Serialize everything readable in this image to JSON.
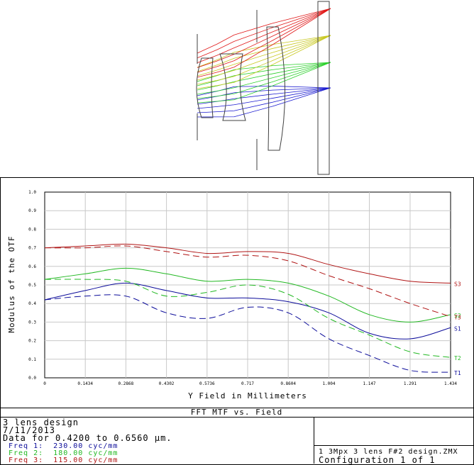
{
  "layout_colors": {
    "blue": "#1a1ad0",
    "green": "#2bd02b",
    "yellow": "#c8c820",
    "red": "#e01818",
    "element": "#404040"
  },
  "chart_data": {
    "type": "line",
    "title": "FFT MTF vs. Field",
    "xlabel": "Y Field in Millimeters",
    "ylabel": "Modulus of the OTF",
    "xlim": [
      0,
      1.434
    ],
    "ylim": [
      0,
      1.0
    ],
    "x_ticks": [
      "0",
      "0.1434",
      "0.2868",
      "0.4302",
      "0.5736",
      "0.717",
      "0.8604",
      "1.004",
      "1.147",
      "1.291",
      "1.434"
    ],
    "y_ticks": [
      "0.0",
      "0.1",
      "0.2",
      "0.3",
      "0.4",
      "0.5",
      "0.6",
      "0.7",
      "0.8",
      "0.9",
      "1.0"
    ],
    "grid": true,
    "x": [
      0,
      0.1434,
      0.2868,
      0.4302,
      0.5736,
      0.717,
      0.8604,
      1.004,
      1.147,
      1.291,
      1.434
    ],
    "series": [
      {
        "name": "Freq 1: 230.00 cyc/mm",
        "label": "S1",
        "line": "solid",
        "color": "#0c0c9a",
        "values": [
          0.42,
          0.47,
          0.51,
          0.47,
          0.43,
          0.43,
          0.41,
          0.35,
          0.24,
          0.21,
          0.27
        ]
      },
      {
        "name": "Freq 1: 230.00 cyc/mm",
        "label": "T1",
        "line": "dashed",
        "color": "#0c0c9a",
        "values": [
          0.42,
          0.44,
          0.44,
          0.35,
          0.32,
          0.38,
          0.35,
          0.21,
          0.12,
          0.04,
          0.03
        ]
      },
      {
        "name": "Freq 2: 180.00 cyc/mm",
        "label": "S2",
        "line": "solid",
        "color": "#22b822",
        "values": [
          0.53,
          0.56,
          0.59,
          0.56,
          0.52,
          0.53,
          0.51,
          0.44,
          0.34,
          0.3,
          0.34
        ]
      },
      {
        "name": "Freq 2: 180.00 cyc/mm",
        "label": "T2",
        "line": "dashed",
        "color": "#22b822",
        "values": [
          0.53,
          0.53,
          0.52,
          0.44,
          0.46,
          0.5,
          0.45,
          0.32,
          0.23,
          0.14,
          0.11
        ]
      },
      {
        "name": "Freq 3: 115.00 cyc/mm",
        "label": "S3",
        "line": "solid",
        "color": "#b01414",
        "values": [
          0.7,
          0.71,
          0.72,
          0.7,
          0.67,
          0.68,
          0.67,
          0.61,
          0.56,
          0.52,
          0.51
        ]
      },
      {
        "name": "Freq 3: 115.00 cyc/mm",
        "label": "T3",
        "line": "dashed",
        "color": "#b01414",
        "values": [
          0.7,
          0.7,
          0.71,
          0.68,
          0.65,
          0.66,
          0.63,
          0.55,
          0.48,
          0.4,
          0.33
        ]
      }
    ]
  },
  "info": {
    "line1": "3 lens design",
    "line2": "7/11/2013",
    "line3": "Data for 0.4200 to 0.6560 μm.",
    "freqs": [
      {
        "text": "Freq 1:  230.00 cyc/mm",
        "color": "#0c0c9a"
      },
      {
        "text": "Freq 2:  180.00 cyc/mm",
        "color": "#22b822"
      },
      {
        "text": "Freq 3:  115.00 cyc/mm",
        "color": "#b01414"
      }
    ],
    "file": "1 3Mpx 3 lens F#2 design.ZMX",
    "config": "Configuration 1 of 1"
  }
}
